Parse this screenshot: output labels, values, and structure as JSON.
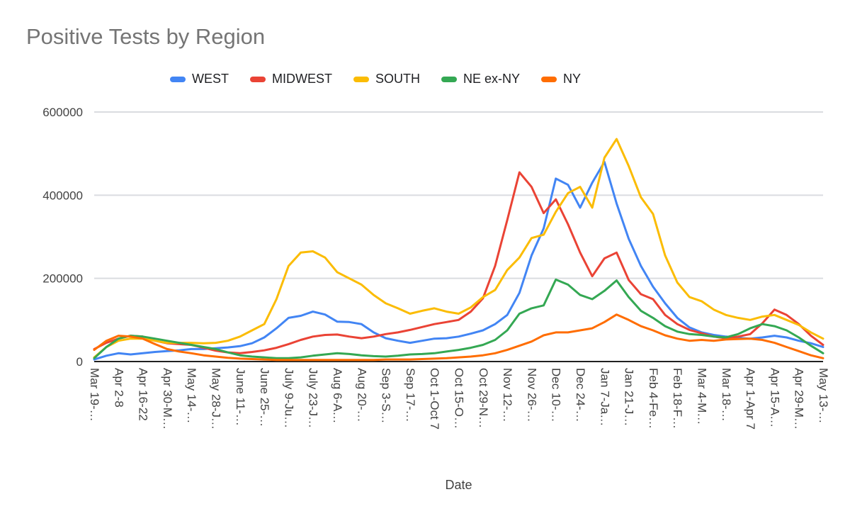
{
  "chart_data": {
    "type": "line",
    "title": "Positive Tests by Region",
    "xlabel": "Date",
    "ylabel": "",
    "ylim": [
      0,
      600000
    ],
    "y_ticks": [
      0,
      200000,
      400000,
      600000
    ],
    "grid": true,
    "legend_position": "top",
    "x_label_every": 2,
    "x_labels": [
      "Mar 19-…",
      "Apr 2-8",
      "Apr 16-22",
      "Apr 30-M…",
      "May 14-…",
      "May 28-J…",
      "June 11-…",
      "June 25-…",
      "July 9-Ju…",
      "July 23-J…",
      "Aug 6-A…",
      "Aug 20-…",
      "Sep 3-S…",
      "Sep 17-…",
      "Oct 1-Oct 7",
      "Oct 15-O…",
      "Oct 29-N…",
      "Nov 12-…",
      "Nov 26-…",
      "Dec 10-…",
      "Dec 24-…",
      "Jan 7-Ja…",
      "Jan 21-J…",
      "Feb 4-Fe…",
      "Feb 18-F…",
      "Mar 4-M…",
      "Mar 18-…",
      "Apr 1-Apr 7",
      "Apr 15-A…",
      "Apr 29-M…",
      "May 13-…"
    ],
    "series": [
      {
        "name": "WEST",
        "color": "#4285F4",
        "values": [
          5000,
          14000,
          20000,
          17000,
          20000,
          23000,
          25000,
          27000,
          30000,
          30000,
          32000,
          34000,
          37000,
          44000,
          58000,
          80000,
          105000,
          110000,
          120000,
          113000,
          96000,
          95000,
          90000,
          70000,
          56000,
          50000,
          45000,
          50000,
          55000,
          56000,
          60000,
          67000,
          75000,
          90000,
          112000,
          165000,
          255000,
          320000,
          440000,
          425000,
          370000,
          430000,
          480000,
          380000,
          295000,
          230000,
          180000,
          140000,
          105000,
          82000,
          70000,
          64000,
          60000,
          57000,
          55000,
          58000,
          62000,
          58000,
          50000,
          44000,
          35000
        ]
      },
      {
        "name": "MIDWEST",
        "color": "#EA4335",
        "values": [
          30000,
          45000,
          55000,
          62000,
          60000,
          50000,
          44000,
          42000,
          40000,
          33000,
          26000,
          22000,
          20000,
          23000,
          27000,
          33000,
          42000,
          52000,
          60000,
          64000,
          65000,
          60000,
          56000,
          60000,
          66000,
          70000,
          76000,
          83000,
          90000,
          95000,
          100000,
          120000,
          152000,
          230000,
          340000,
          455000,
          420000,
          357000,
          390000,
          330000,
          262000,
          205000,
          248000,
          262000,
          196000,
          162000,
          150000,
          112000,
          90000,
          76000,
          68000,
          60000,
          56000,
          60000,
          66000,
          92000,
          125000,
          112000,
          90000,
          62000,
          40000
        ]
      },
      {
        "name": "SOUTH",
        "color": "#FBBC04",
        "values": [
          10000,
          35000,
          50000,
          55000,
          55000,
          50000,
          45000,
          45000,
          45000,
          44000,
          45000,
          50000,
          60000,
          75000,
          90000,
          150000,
          230000,
          262000,
          265000,
          250000,
          215000,
          200000,
          185000,
          160000,
          140000,
          128000,
          115000,
          122000,
          128000,
          120000,
          115000,
          130000,
          155000,
          172000,
          220000,
          250000,
          297000,
          305000,
          360000,
          405000,
          420000,
          370000,
          490000,
          535000,
          470000,
          395000,
          355000,
          255000,
          190000,
          155000,
          145000,
          125000,
          112000,
          105000,
          100000,
          108000,
          112000,
          100000,
          88000,
          70000,
          55000
        ]
      },
      {
        "name": "NE ex-NY",
        "color": "#34A853",
        "values": [
          8000,
          35000,
          55000,
          62000,
          60000,
          55000,
          50000,
          45000,
          40000,
          35000,
          30000,
          22000,
          15000,
          12000,
          10000,
          8000,
          8000,
          10000,
          14000,
          17000,
          20000,
          18000,
          15000,
          13000,
          12000,
          14000,
          17000,
          18000,
          20000,
          24000,
          28000,
          33000,
          40000,
          52000,
          75000,
          115000,
          128000,
          135000,
          197000,
          185000,
          160000,
          150000,
          170000,
          195000,
          155000,
          122000,
          105000,
          85000,
          72000,
          66000,
          64000,
          60000,
          58000,
          66000,
          80000,
          90000,
          85000,
          75000,
          58000,
          38000,
          20000
        ]
      },
      {
        "name": "NY",
        "color": "#FF6D01",
        "values": [
          28000,
          50000,
          62000,
          60000,
          55000,
          42000,
          30000,
          24000,
          20000,
          15000,
          12000,
          9000,
          7000,
          6000,
          5000,
          4000,
          4000,
          4000,
          4000,
          4000,
          4000,
          4000,
          4000,
          4000,
          5000,
          5000,
          5000,
          6000,
          7000,
          8000,
          10000,
          12000,
          15000,
          20000,
          28000,
          38000,
          48000,
          63000,
          70000,
          70000,
          75000,
          80000,
          95000,
          113000,
          100000,
          85000,
          75000,
          63000,
          55000,
          50000,
          52000,
          50000,
          53000,
          54000,
          55000,
          52000,
          45000,
          35000,
          25000,
          15000,
          8000
        ]
      }
    ]
  }
}
